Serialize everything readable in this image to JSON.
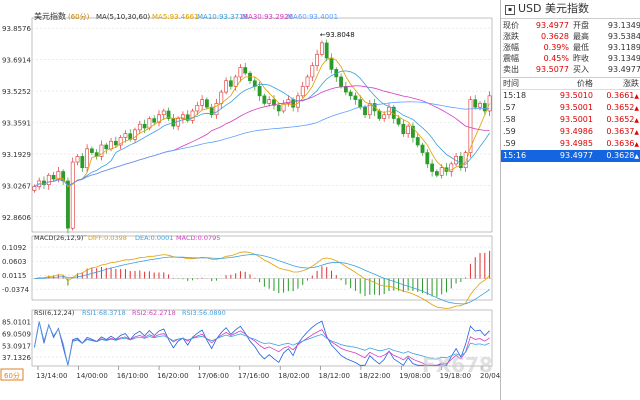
{
  "chart_data": [
    {
      "type": "candlestick",
      "title": "美元指数",
      "period": "(60分)",
      "legend": "MA(5,10,30,60)",
      "ma_values": [
        {
          "name": "MA5",
          "value": "93.4661",
          "color": "#e0a000"
        },
        {
          "name": "MA10",
          "value": "93.3719",
          "color": "#3ba0e0"
        },
        {
          "name": "MA30",
          "value": "93.2926",
          "color": "#d040c0"
        },
        {
          "name": "MA60",
          "value": "93.4001",
          "color": "#60a0ff"
        }
      ],
      "y_ticks": [
        "93.8576",
        "93.6914",
        "93.5252",
        "93.3591",
        "93.1929",
        "93.0267",
        "92.8606"
      ],
      "ylim": [
        92.78,
        93.88
      ],
      "annotations": [
        {
          "label": "93.8048",
          "value": 93.8048
        },
        {
          "label": "92.7498",
          "value": 92.7498
        }
      ],
      "x_ticks": [
        "13/14:00",
        "14/00:00",
        "16/10:00",
        "16/20:00",
        "17/06:00",
        "17/16:00",
        "18/02:00",
        "18/12:00",
        "18/22:00",
        "19/08:00",
        "19/18:00",
        "20/04:00"
      ],
      "closes": [
        93.02,
        93.05,
        93.03,
        93.08,
        93.06,
        93.1,
        93.05,
        92.8,
        93.15,
        93.18,
        93.12,
        93.22,
        93.2,
        93.18,
        93.24,
        93.22,
        93.26,
        93.24,
        93.28,
        93.3,
        93.27,
        93.32,
        93.35,
        93.33,
        93.38,
        93.36,
        93.4,
        93.42,
        93.38,
        93.34,
        93.38,
        93.4,
        93.37,
        93.42,
        93.45,
        93.48,
        93.44,
        93.4,
        93.46,
        93.52,
        93.58,
        93.55,
        93.6,
        93.65,
        93.62,
        93.58,
        93.55,
        93.5,
        93.46,
        93.48,
        93.45,
        93.42,
        93.46,
        93.48,
        93.44,
        93.5,
        93.55,
        93.6,
        93.66,
        93.72,
        93.78,
        93.7,
        93.64,
        93.6,
        93.55,
        93.52,
        93.5,
        93.48,
        93.44,
        93.4,
        93.46,
        93.42,
        93.38,
        93.4,
        93.44,
        93.38,
        93.35,
        93.3,
        93.34,
        93.28,
        93.24,
        93.2,
        93.14,
        93.1,
        93.08,
        93.12,
        93.1,
        93.14,
        93.18,
        93.12,
        93.2,
        93.48,
        93.44,
        93.46,
        93.42,
        93.5
      ]
    },
    {
      "type": "macd",
      "legend": "MACD(26,12,9)",
      "diff_label": "DIFF:0.0398",
      "dea_label": "DEA:0.0001",
      "macd_label": "MACD:0.0795",
      "y_ticks": [
        "0.1092",
        "0.0603",
        "0.0115",
        "-0.0374"
      ],
      "ylim": [
        -0.075,
        0.12
      ]
    },
    {
      "type": "rsi",
      "legend": "RSI(6,12,24)",
      "rsi1_label": "RSI1:68.3718",
      "rsi2_label": "RSI2:62.2718",
      "rsi3_label": "RSI3:56.0890",
      "y_ticks": [
        "85.0101",
        "69.0509",
        "53.0917",
        "37.1326"
      ],
      "ylim": [
        25,
        90
      ]
    }
  ],
  "period_button": "60分",
  "watermark": "FX678 汇通网",
  "panel": {
    "symbol": "USD",
    "name": "美元指数",
    "quote_rows": [
      [
        "现价",
        "93.4977",
        "开盘",
        "93.1349"
      ],
      [
        "涨跌",
        "0.3628",
        "最高",
        "93.5384"
      ],
      [
        "涨幅",
        "0.39%",
        "最低",
        "93.1189"
      ],
      [
        "震幅",
        "0.45%",
        "昨收",
        "93.1349"
      ],
      [
        "卖出",
        "93.5077",
        "买入",
        "93.4977"
      ]
    ],
    "trade_header": [
      "时间",
      "价格",
      "涨跌"
    ],
    "trades": [
      [
        "15:18",
        "93.5010",
        "0.3661"
      ],
      [
        ".57",
        "93.5001",
        "0.3652"
      ],
      [
        ".58",
        "93.5001",
        "0.3652"
      ],
      [
        ".59",
        "93.4986",
        "0.3637"
      ],
      [
        ".59",
        "93.4985",
        "0.3636"
      ],
      [
        "15:16",
        "93.4977",
        "0.3628"
      ]
    ]
  }
}
